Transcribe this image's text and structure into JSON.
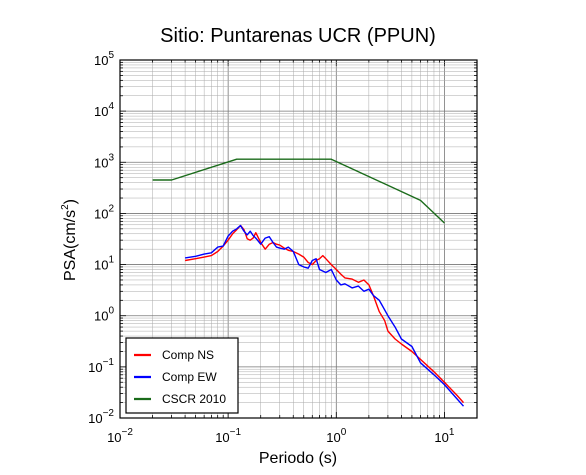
{
  "chart_data": {
    "type": "line",
    "title": "Sitio: Puntarenas UCR (PPUN)",
    "xlabel": "Periodo (s)",
    "ylabel_base": "PSA(cm/s",
    "ylabel_sup": "2",
    "ylabel_close": ")",
    "xscale": "log",
    "yscale": "log",
    "xlim": [
      0.01,
      20
    ],
    "ylim": [
      0.01,
      100000
    ],
    "grid": true,
    "legend_position": "bottom-left",
    "x_ticks": [
      {
        "value": 0.01,
        "base": "10",
        "exp": "−2"
      },
      {
        "value": 0.1,
        "base": "10",
        "exp": "−1"
      },
      {
        "value": 1,
        "base": "10",
        "exp": "0"
      },
      {
        "value": 10,
        "base": "10",
        "exp": "1"
      }
    ],
    "y_ticks": [
      {
        "value": 0.01,
        "base": "10",
        "exp": "−2"
      },
      {
        "value": 0.1,
        "base": "10",
        "exp": "−1"
      },
      {
        "value": 1,
        "base": "10",
        "exp": "0"
      },
      {
        "value": 10,
        "base": "10",
        "exp": "1"
      },
      {
        "value": 100,
        "base": "10",
        "exp": "2"
      },
      {
        "value": 1000,
        "base": "10",
        "exp": "3"
      },
      {
        "value": 10000,
        "base": "10",
        "exp": "4"
      },
      {
        "value": 100000,
        "base": "10",
        "exp": "5"
      }
    ],
    "series": [
      {
        "name": "Comp NS",
        "color": "#ff0000",
        "points": [
          [
            0.04,
            12
          ],
          [
            0.05,
            13
          ],
          [
            0.06,
            14
          ],
          [
            0.07,
            15
          ],
          [
            0.08,
            18
          ],
          [
            0.09,
            23
          ],
          [
            0.1,
            30
          ],
          [
            0.11,
            40
          ],
          [
            0.12,
            48
          ],
          [
            0.13,
            58
          ],
          [
            0.14,
            48
          ],
          [
            0.15,
            32
          ],
          [
            0.16,
            30
          ],
          [
            0.17,
            33
          ],
          [
            0.18,
            42
          ],
          [
            0.2,
            27
          ],
          [
            0.22,
            20
          ],
          [
            0.24,
            25
          ],
          [
            0.26,
            27
          ],
          [
            0.28,
            25
          ],
          [
            0.3,
            24
          ],
          [
            0.33,
            21
          ],
          [
            0.36,
            19
          ],
          [
            0.4,
            18
          ],
          [
            0.45,
            16
          ],
          [
            0.5,
            14
          ],
          [
            0.55,
            11
          ],
          [
            0.6,
            10
          ],
          [
            0.65,
            12
          ],
          [
            0.7,
            13
          ],
          [
            0.75,
            15
          ],
          [
            0.8,
            13
          ],
          [
            0.9,
            10
          ],
          [
            1.0,
            8
          ],
          [
            1.1,
            6.5
          ],
          [
            1.2,
            5.5
          ],
          [
            1.4,
            5.2
          ],
          [
            1.6,
            4.5
          ],
          [
            1.8,
            5
          ],
          [
            2.0,
            4
          ],
          [
            2.2,
            2.5
          ],
          [
            2.5,
            1.2
          ],
          [
            2.8,
            0.8
          ],
          [
            3.0,
            0.5
          ],
          [
            3.5,
            0.35
          ],
          [
            4,
            0.28
          ],
          [
            5,
            0.2
          ],
          [
            6,
            0.14
          ],
          [
            8,
            0.08
          ],
          [
            10,
            0.05
          ],
          [
            13,
            0.028
          ],
          [
            15,
            0.02
          ]
        ]
      },
      {
        "name": "Comp EW",
        "color": "#0000ff",
        "points": [
          [
            0.04,
            13.5
          ],
          [
            0.05,
            14.5
          ],
          [
            0.06,
            16
          ],
          [
            0.07,
            17
          ],
          [
            0.08,
            22
          ],
          [
            0.09,
            23
          ],
          [
            0.1,
            36
          ],
          [
            0.11,
            45
          ],
          [
            0.12,
            50
          ],
          [
            0.13,
            58
          ],
          [
            0.14,
            45
          ],
          [
            0.15,
            38
          ],
          [
            0.16,
            45
          ],
          [
            0.17,
            37
          ],
          [
            0.18,
            33
          ],
          [
            0.2,
            25
          ],
          [
            0.22,
            33
          ],
          [
            0.24,
            35
          ],
          [
            0.26,
            27
          ],
          [
            0.28,
            22
          ],
          [
            0.3,
            21
          ],
          [
            0.33,
            20
          ],
          [
            0.36,
            22
          ],
          [
            0.4,
            18
          ],
          [
            0.45,
            10
          ],
          [
            0.5,
            9
          ],
          [
            0.55,
            8.5
          ],
          [
            0.6,
            12
          ],
          [
            0.65,
            13
          ],
          [
            0.7,
            8
          ],
          [
            0.8,
            7
          ],
          [
            0.9,
            8
          ],
          [
            1.0,
            5
          ],
          [
            1.1,
            4
          ],
          [
            1.2,
            4.2
          ],
          [
            1.4,
            3.5
          ],
          [
            1.6,
            3.8
          ],
          [
            1.8,
            3
          ],
          [
            2.0,
            3.3
          ],
          [
            2.2,
            2.5
          ],
          [
            2.5,
            2
          ],
          [
            3.0,
            1
          ],
          [
            3.5,
            0.6
          ],
          [
            4,
            0.35
          ],
          [
            5,
            0.25
          ],
          [
            6,
            0.12
          ],
          [
            8,
            0.07
          ],
          [
            10,
            0.045
          ],
          [
            13,
            0.024
          ],
          [
            15,
            0.017
          ]
        ]
      },
      {
        "name": "CSCR 2010",
        "color": "#1a6b1a",
        "points": [
          [
            0.02,
            450
          ],
          [
            0.03,
            450
          ],
          [
            0.12,
            1150
          ],
          [
            0.9,
            1150
          ],
          [
            6,
            180
          ],
          [
            10,
            65
          ]
        ]
      }
    ]
  }
}
